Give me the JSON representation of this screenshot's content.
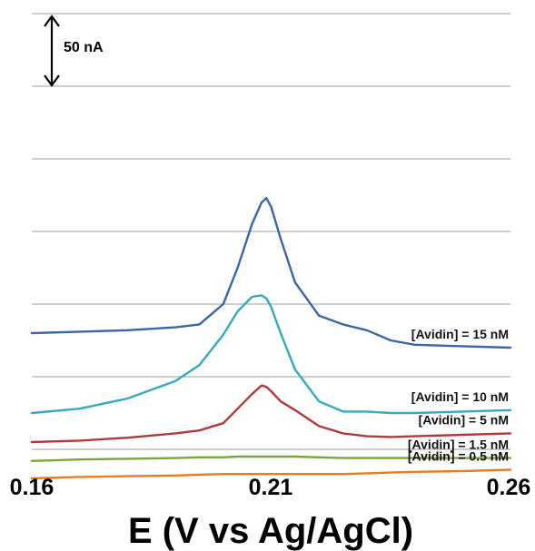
{
  "chart_data": {
    "type": "line",
    "title": "",
    "xlabel": "E (V vs Ag/AgCl)",
    "ylabel": "",
    "xlim": [
      0.16,
      0.26
    ],
    "x_ticks": [
      "0.16",
      "0.21",
      "0.26"
    ],
    "grid": "horizontal",
    "scale_bar": {
      "label": "50 nA",
      "value_nA": 50
    },
    "x": [
      0.16,
      0.17,
      0.18,
      0.19,
      0.195,
      0.2,
      0.203,
      0.206,
      0.208,
      0.209,
      0.21,
      0.212,
      0.215,
      0.22,
      0.225,
      0.23,
      0.235,
      0.24,
      0.25,
      0.26
    ],
    "series": [
      {
        "name": "[Avidin] = 0.5 nM",
        "color": "#e87c22",
        "values": [
          -20,
          -19,
          -18.5,
          -18,
          -17.5,
          -17,
          -17,
          -17,
          -17,
          -17,
          -17,
          -17,
          -17,
          -17,
          -17,
          -16.5,
          -16,
          -15.5,
          -15,
          -14
        ]
      },
      {
        "name": "[Avidin] = 1.5 nM",
        "color": "#7ea33b",
        "values": [
          -8,
          -7,
          -6.5,
          -6,
          -5.5,
          -5.5,
          -5,
          -5,
          -5,
          -5,
          -5,
          -5,
          -5,
          -5.5,
          -6,
          -6,
          -6,
          -6,
          -6,
          -6
        ]
      },
      {
        "name": "[Avidin] = 5 nM",
        "color": "#b03a3a",
        "values": [
          5,
          6,
          8,
          11,
          13,
          18,
          28,
          38,
          44,
          43,
          40,
          33,
          27,
          16,
          11,
          9,
          8.5,
          9,
          10,
          11
        ]
      },
      {
        "name": "[Avidin] = 10 nM",
        "color": "#35a9bf",
        "values": [
          25,
          28,
          35,
          47,
          58,
          79,
          95,
          105,
          106,
          104,
          98,
          80,
          55,
          33,
          26,
          26,
          25,
          25,
          26,
          27
        ]
      },
      {
        "name": "[Avidin] = 15 nM",
        "color": "#3a65a8",
        "values": [
          80,
          81,
          82,
          84,
          86,
          100,
          125,
          155,
          170,
          173,
          167,
          145,
          115,
          92,
          86,
          82,
          75,
          72,
          71,
          70
        ]
      }
    ]
  }
}
